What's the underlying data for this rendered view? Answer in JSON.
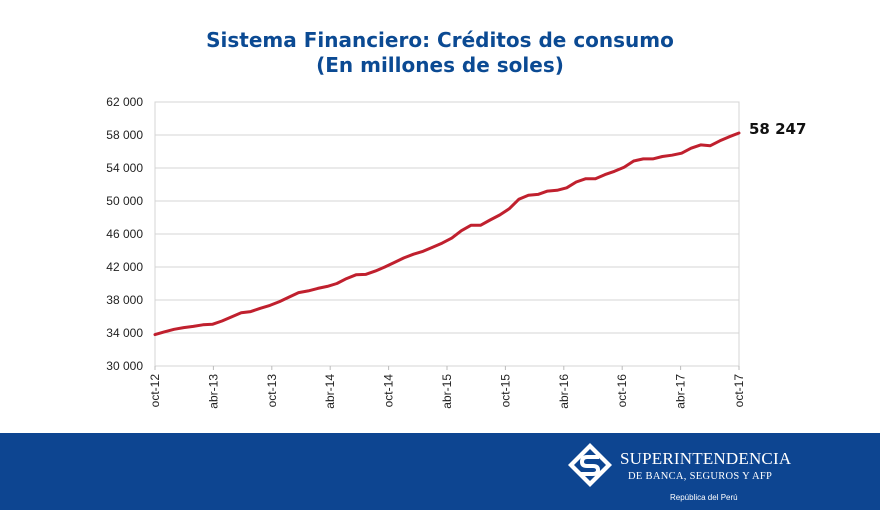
{
  "title": {
    "line1": "Sistema Financiero: Créditos de consumo",
    "line2": "(En millones de soles)"
  },
  "chart_data": {
    "type": "line",
    "title": "Sistema Financiero: Créditos de consumo",
    "subtitle": "(En millones de soles)",
    "xlabel": "",
    "ylabel": "",
    "ylim": [
      30000,
      62000
    ],
    "yticks": [
      30000,
      34000,
      38000,
      42000,
      46000,
      50000,
      54000,
      58000,
      62000
    ],
    "ytick_labels": [
      "30 000",
      "34 000",
      "38 000",
      "42 000",
      "46 000",
      "50 000",
      "54 000",
      "58 000",
      "62 000"
    ],
    "xtick_labels": [
      "oct-12",
      "abr-13",
      "oct-13",
      "abr-14",
      "oct-14",
      "abr-15",
      "oct-15",
      "abr-16",
      "oct-16",
      "abr-17",
      "oct-17"
    ],
    "grid": true,
    "color": "#c0202e",
    "end_label": "58 247",
    "x_start": "oct-12",
    "x_end": "oct-17",
    "series": [
      {
        "values": [
          33800,
          34150,
          34450,
          34650,
          34800,
          35000,
          35050,
          35450,
          35950,
          36450,
          36600,
          37000,
          37350,
          37800,
          38350,
          38900,
          39100,
          39400,
          39650,
          40000,
          40600,
          41050,
          41100,
          41500,
          42000,
          42550,
          43100,
          43550,
          43900,
          44400,
          44900,
          45500,
          46400,
          47050,
          47050,
          47700,
          48300,
          49050,
          50200,
          50700,
          50800,
          51200,
          51300,
          51600,
          52300,
          52700,
          52700,
          53200,
          53600,
          54100,
          54850,
          55100,
          55100,
          55400,
          55550,
          55800,
          56400,
          56800,
          56700,
          57300,
          57800,
          58247
        ]
      }
    ]
  },
  "footer": {
    "brand_line1": "SUPERINTENDENCIA",
    "brand_line2": "DE BANCA, SEGUROS Y AFP",
    "brand_line3": "República del Perú",
    "background": "#0d4591"
  }
}
